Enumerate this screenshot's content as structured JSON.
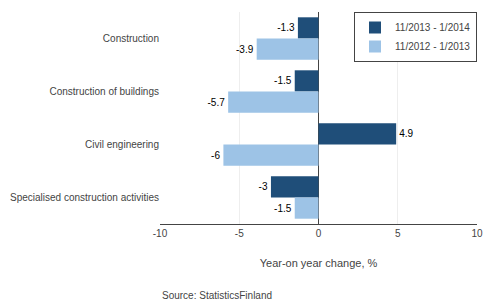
{
  "chart_data": {
    "type": "bar",
    "orientation": "horizontal",
    "categories": [
      "Construction",
      "Construction of buildings",
      "Civil engineering",
      "Specialised construction activities"
    ],
    "series": [
      {
        "name": "11/2013 - 1/2014",
        "color": "#1F4E79",
        "values": [
          -1.3,
          -1.5,
          4.9,
          -3.0
        ]
      },
      {
        "name": "11/2012 - 1/2013",
        "color": "#9DC3E6",
        "values": [
          -3.9,
          -5.7,
          -6.0,
          -1.5
        ]
      }
    ],
    "xlabel": "Year-on year change, %",
    "xlim": [
      -10,
      10
    ],
    "xticks": [
      -10,
      -5,
      0,
      5,
      10
    ],
    "grid": true,
    "legend": "upper right",
    "data_labels": true,
    "annotations": [
      "Source: StatisticsFinland"
    ]
  }
}
